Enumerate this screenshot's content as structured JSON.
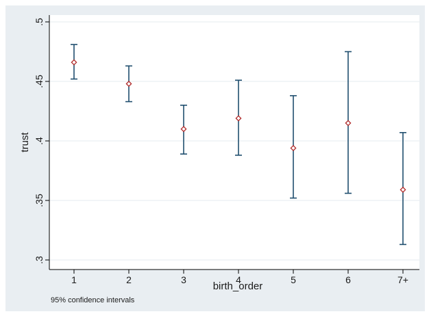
{
  "chart_data": {
    "type": "scatter",
    "title": "",
    "xlabel": "birth_order",
    "ylabel": "trust",
    "categories": [
      "1",
      "2",
      "3",
      "4",
      "5",
      "6",
      "7+"
    ],
    "ylim": [
      0.3,
      0.5
    ],
    "yticks": [
      0.3,
      0.35,
      0.4,
      0.45,
      0.5
    ],
    "ytick_labels": [
      ".3",
      ".35",
      ".4",
      ".45",
      ".5"
    ],
    "grid": "horizontal",
    "legend": "none",
    "note": "95% confidence intervals",
    "series": [
      {
        "points": [
          {
            "x": "1",
            "y": 0.466,
            "lo": 0.452,
            "hi": 0.481
          },
          {
            "x": "2",
            "y": 0.448,
            "lo": 0.433,
            "hi": 0.463
          },
          {
            "x": "3",
            "y": 0.41,
            "lo": 0.389,
            "hi": 0.43
          },
          {
            "x": "4",
            "y": 0.419,
            "lo": 0.388,
            "hi": 0.451
          },
          {
            "x": "5",
            "y": 0.394,
            "lo": 0.352,
            "hi": 0.438
          },
          {
            "x": "6",
            "y": 0.415,
            "lo": 0.356,
            "hi": 0.475
          },
          {
            "x": "7+",
            "y": 0.359,
            "lo": 0.313,
            "hi": 0.407
          }
        ]
      }
    ],
    "colors": {
      "outer_bg": "#e9eef2",
      "plot_bg": "#ffffff",
      "grid": "#e6ebef",
      "errorbar": "#1f4e6e",
      "marker": "#b02a2a"
    }
  }
}
